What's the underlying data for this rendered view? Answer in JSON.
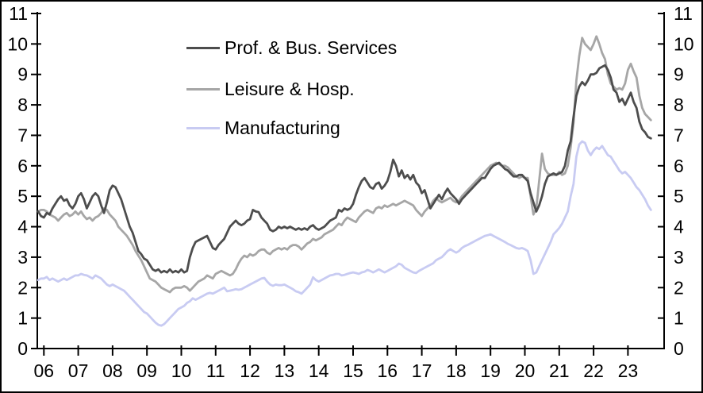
{
  "chart_data": {
    "type": "line",
    "x_start": "2005-11",
    "x_frequency": "monthly",
    "x_tick_labels": [
      "06",
      "07",
      "08",
      "09",
      "10",
      "11",
      "12",
      "13",
      "14",
      "15",
      "16",
      "17",
      "18",
      "19",
      "20",
      "21",
      "22",
      "23"
    ],
    "y_ticks": [
      0,
      1,
      2,
      3,
      4,
      5,
      6,
      7,
      8,
      9,
      10,
      11
    ],
    "ylim": [
      0,
      11
    ],
    "y_axis_left": true,
    "y_axis_right": true,
    "grid": false,
    "legend_position": "upper-left-inside",
    "axis_color": "#000000",
    "series": [
      {
        "id": "prof-bus-services",
        "name": "Prof. & Bus. Services",
        "color": "#4d4d4d",
        "z": 3,
        "values": [
          4.5,
          4.35,
          4.3,
          4.45,
          4.4,
          4.6,
          4.75,
          4.9,
          5.0,
          4.85,
          4.9,
          4.7,
          4.6,
          4.75,
          5.0,
          5.1,
          4.9,
          4.6,
          4.8,
          5.0,
          5.1,
          5.0,
          4.7,
          4.45,
          4.8,
          5.2,
          5.35,
          5.3,
          5.1,
          4.9,
          4.6,
          4.3,
          4.0,
          3.8,
          3.5,
          3.2,
          3.1,
          2.95,
          2.9,
          2.75,
          2.6,
          2.55,
          2.6,
          2.5,
          2.55,
          2.5,
          2.6,
          2.5,
          2.55,
          2.5,
          2.6,
          2.5,
          2.55,
          3.0,
          3.3,
          3.5,
          3.55,
          3.6,
          3.65,
          3.7,
          3.5,
          3.3,
          3.25,
          3.4,
          3.5,
          3.6,
          3.8,
          4.0,
          4.1,
          4.2,
          4.1,
          4.05,
          4.1,
          4.2,
          4.25,
          4.55,
          4.5,
          4.48,
          4.3,
          4.2,
          4.1,
          3.9,
          3.85,
          3.9,
          4.0,
          3.95,
          4.0,
          3.95,
          4.0,
          3.95,
          3.9,
          3.95,
          3.9,
          3.95,
          3.9,
          4.0,
          4.05,
          3.95,
          3.9,
          3.95,
          4.0,
          4.1,
          4.2,
          4.25,
          4.3,
          4.55,
          4.5,
          4.6,
          4.55,
          4.6,
          4.75,
          5.05,
          5.3,
          5.5,
          5.6,
          5.45,
          5.3,
          5.25,
          5.4,
          5.45,
          5.25,
          5.35,
          5.5,
          5.8,
          6.2,
          6.0,
          5.65,
          5.85,
          5.6,
          5.7,
          5.55,
          5.7,
          5.45,
          5.35,
          5.1,
          5.2,
          4.9,
          4.6,
          4.75,
          4.9,
          5.05,
          4.9,
          5.1,
          5.25,
          5.1,
          5.0,
          4.9,
          4.75,
          4.9,
          5.0,
          5.1,
          5.2,
          5.3,
          5.4,
          5.5,
          5.6,
          5.6,
          5.75,
          5.9,
          6.0,
          6.05,
          6.1,
          6.0,
          5.9,
          5.85,
          5.75,
          5.65,
          5.65,
          5.7,
          5.7,
          5.6,
          5.5,
          5.1,
          4.8,
          4.5,
          4.7,
          5.0,
          5.4,
          5.65,
          5.7,
          5.75,
          5.7,
          5.75,
          5.8,
          6.0,
          6.5,
          6.8,
          7.6,
          8.3,
          8.6,
          8.75,
          8.65,
          8.8,
          9.0,
          9.0,
          9.05,
          9.2,
          9.25,
          9.3,
          9.15,
          8.9,
          8.5,
          8.4,
          8.1,
          8.2,
          8.0,
          8.2,
          8.4,
          8.1,
          7.9,
          7.45,
          7.2,
          7.1,
          6.95,
          6.9
        ]
      },
      {
        "id": "leisure-hosp",
        "name": "Leisure & Hosp.",
        "color": "#a6a6a6",
        "z": 1,
        "values": [
          4.5,
          4.55,
          4.55,
          4.5,
          4.4,
          4.35,
          4.3,
          4.2,
          4.3,
          4.4,
          4.45,
          4.35,
          4.4,
          4.5,
          4.4,
          4.5,
          4.35,
          4.25,
          4.3,
          4.2,
          4.3,
          4.35,
          4.45,
          4.6,
          4.55,
          4.4,
          4.3,
          4.2,
          4.0,
          3.9,
          3.8,
          3.7,
          3.55,
          3.4,
          3.2,
          3.05,
          2.9,
          2.7,
          2.5,
          2.3,
          2.25,
          2.2,
          2.1,
          2.0,
          1.95,
          1.9,
          1.85,
          1.95,
          2.0,
          2.0,
          2.0,
          2.05,
          2.0,
          1.9,
          2.0,
          2.1,
          2.2,
          2.25,
          2.3,
          2.4,
          2.35,
          2.3,
          2.45,
          2.5,
          2.55,
          2.5,
          2.45,
          2.4,
          2.45,
          2.6,
          2.8,
          2.95,
          3.05,
          3.0,
          3.1,
          3.05,
          3.1,
          3.2,
          3.25,
          3.25,
          3.15,
          3.1,
          3.2,
          3.25,
          3.3,
          3.25,
          3.3,
          3.25,
          3.35,
          3.4,
          3.4,
          3.35,
          3.25,
          3.35,
          3.45,
          3.5,
          3.6,
          3.55,
          3.6,
          3.65,
          3.75,
          3.8,
          3.85,
          3.9,
          4.0,
          4.1,
          4.05,
          4.2,
          4.3,
          4.25,
          4.2,
          4.15,
          4.3,
          4.4,
          4.5,
          4.55,
          4.5,
          4.45,
          4.6,
          4.65,
          4.6,
          4.7,
          4.65,
          4.7,
          4.75,
          4.7,
          4.75,
          4.8,
          4.85,
          4.8,
          4.75,
          4.7,
          4.55,
          4.45,
          4.35,
          4.5,
          4.6,
          4.7,
          4.85,
          4.95,
          4.85,
          4.8,
          4.85,
          4.9,
          4.95,
          4.85,
          4.8,
          4.85,
          5.0,
          5.1,
          5.2,
          5.3,
          5.4,
          5.5,
          5.6,
          5.7,
          5.8,
          5.9,
          6.0,
          6.05,
          6.1,
          6.05,
          6.0,
          6.0,
          5.95,
          5.85,
          5.75,
          5.65,
          5.6,
          5.65,
          5.6,
          5.6,
          5.0,
          4.4,
          4.6,
          5.5,
          6.4,
          5.9,
          5.75,
          5.7,
          5.7,
          5.7,
          5.8,
          5.7,
          5.75,
          6.0,
          6.6,
          7.4,
          8.8,
          9.6,
          10.2,
          10.0,
          9.9,
          9.8,
          10.0,
          10.25,
          10.0,
          9.7,
          9.5,
          9.0,
          8.7,
          8.6,
          8.5,
          8.55,
          8.5,
          8.7,
          9.15,
          9.35,
          9.1,
          8.9,
          8.3,
          7.9,
          7.7,
          7.6,
          7.5
        ]
      },
      {
        "id": "manufacturing",
        "name": "Manufacturing",
        "color": "#c8cbf2",
        "z": 2,
        "values": [
          2.25,
          2.3,
          2.3,
          2.35,
          2.25,
          2.3,
          2.25,
          2.2,
          2.25,
          2.3,
          2.25,
          2.3,
          2.35,
          2.4,
          2.4,
          2.45,
          2.42,
          2.4,
          2.35,
          2.3,
          2.4,
          2.35,
          2.3,
          2.2,
          2.1,
          2.05,
          2.1,
          2.05,
          2.0,
          1.95,
          1.9,
          1.8,
          1.7,
          1.6,
          1.5,
          1.4,
          1.3,
          1.2,
          1.15,
          1.05,
          0.95,
          0.85,
          0.78,
          0.75,
          0.8,
          0.9,
          1.0,
          1.1,
          1.2,
          1.3,
          1.35,
          1.4,
          1.5,
          1.55,
          1.65,
          1.6,
          1.65,
          1.7,
          1.75,
          1.8,
          1.83,
          1.8,
          1.85,
          1.9,
          1.95,
          2.0,
          1.88,
          1.9,
          1.92,
          1.95,
          1.93,
          1.95,
          2.0,
          2.05,
          2.1,
          2.15,
          2.2,
          2.25,
          2.3,
          2.32,
          2.2,
          2.1,
          2.06,
          2.1,
          2.08,
          2.08,
          2.1,
          2.05,
          2.0,
          1.95,
          1.88,
          1.85,
          1.8,
          1.9,
          2.0,
          2.1,
          2.34,
          2.25,
          2.2,
          2.25,
          2.3,
          2.35,
          2.4,
          2.42,
          2.45,
          2.45,
          2.4,
          2.42,
          2.45,
          2.48,
          2.5,
          2.48,
          2.45,
          2.5,
          2.52,
          2.58,
          2.55,
          2.5,
          2.55,
          2.6,
          2.55,
          2.5,
          2.55,
          2.6,
          2.65,
          2.7,
          2.79,
          2.75,
          2.65,
          2.6,
          2.55,
          2.5,
          2.48,
          2.55,
          2.6,
          2.65,
          2.7,
          2.75,
          2.8,
          2.9,
          2.95,
          3.0,
          3.1,
          3.2,
          3.26,
          3.2,
          3.15,
          3.2,
          3.3,
          3.36,
          3.4,
          3.45,
          3.5,
          3.55,
          3.6,
          3.65,
          3.7,
          3.72,
          3.75,
          3.7,
          3.65,
          3.6,
          3.55,
          3.5,
          3.44,
          3.4,
          3.35,
          3.3,
          3.28,
          3.3,
          3.26,
          3.2,
          2.9,
          2.45,
          2.5,
          2.7,
          2.9,
          3.1,
          3.3,
          3.5,
          3.75,
          3.85,
          3.96,
          4.1,
          4.3,
          4.5,
          5.0,
          5.4,
          6.3,
          6.7,
          6.8,
          6.75,
          6.5,
          6.35,
          6.5,
          6.6,
          6.55,
          6.65,
          6.5,
          6.35,
          6.3,
          6.15,
          6.0,
          5.85,
          5.75,
          5.8,
          5.7,
          5.6,
          5.45,
          5.3,
          5.2,
          5.05,
          4.9,
          4.7,
          4.55
        ]
      }
    ]
  }
}
